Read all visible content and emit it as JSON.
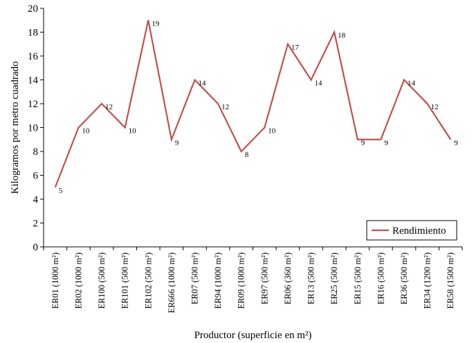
{
  "chart_data": {
    "type": "line",
    "title": "",
    "xlabel": "Productor (superficie en m²)",
    "ylabel": "Kilogramos por metro cuadrado",
    "ylim": [
      0,
      20
    ],
    "yticks": [
      0,
      2,
      4,
      6,
      8,
      10,
      12,
      14,
      16,
      18,
      20
    ],
    "grid": false,
    "legend_position": "bottom-right",
    "categories": [
      "ER01 (1000 m²)",
      "ER02 (1000 m²)",
      "ER100 (500 m²)",
      "ER101 (500 m²)",
      "ER102 (500 m²)",
      "ER666 (1000 m²)",
      "ER07 (500 m²)",
      "ER94 (1000 m²)",
      "ER09 (1000 m²)",
      "ER97 (500 m²)",
      "ER06 (360 m²)",
      "ER13 (500 m²)",
      "ER25 (500 m²)",
      "ER15 (500 m²)",
      "ER16 (500 m²)",
      "ER36 (500 m²)",
      "ER34 (1200 m²)",
      "ER58 (1500 m²)"
    ],
    "series": [
      {
        "name": "Rendimiento",
        "color": "#c0504d",
        "values": [
          5,
          10,
          12,
          10,
          19,
          9,
          14,
          12,
          8,
          10,
          17,
          14,
          18,
          9,
          9,
          14,
          12,
          9
        ]
      }
    ]
  }
}
